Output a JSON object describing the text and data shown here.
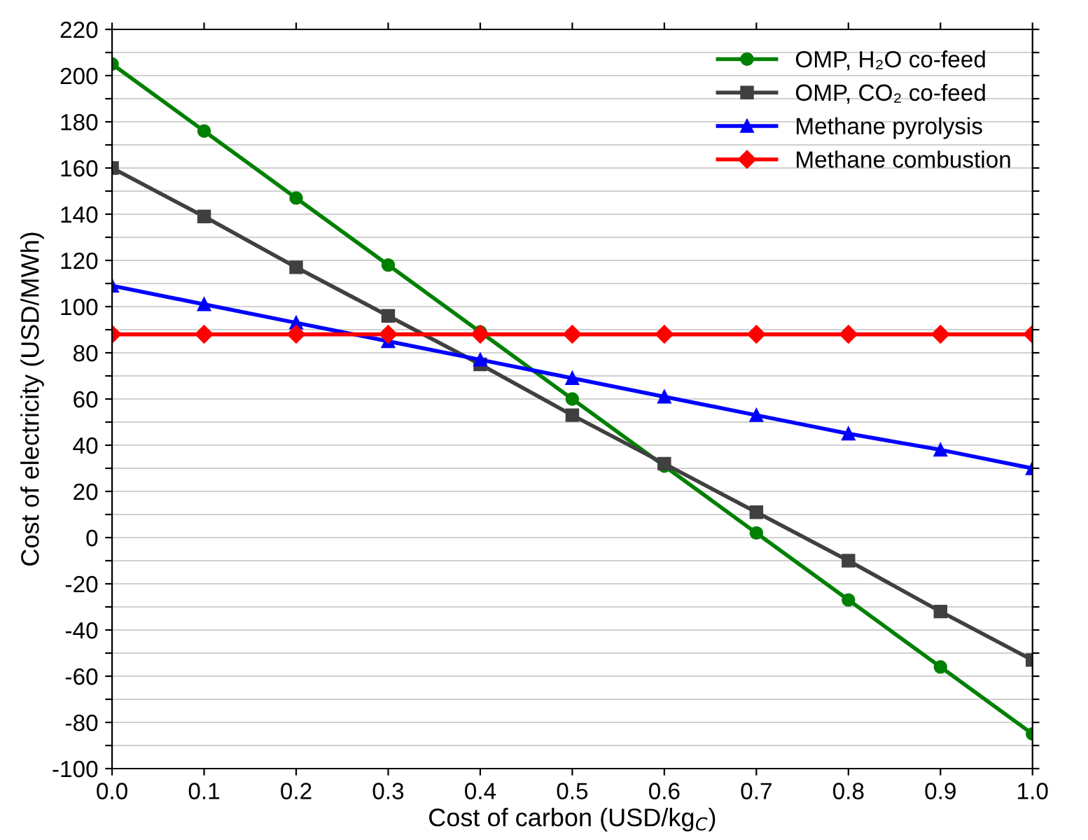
{
  "chart_data": {
    "type": "line",
    "xlabel": "Cost of carbon (USD/kg$_{C}$)",
    "ylabel": "Cost of electricity (USD/MWh)",
    "x": [
      0.0,
      0.1,
      0.2,
      0.3,
      0.4,
      0.5,
      0.6,
      0.7,
      0.8,
      0.9,
      1.0
    ],
    "series": [
      {
        "name": "OMP, H₂O co-feed",
        "color": "#008000",
        "marker": "circle",
        "values": [
          205,
          176,
          147,
          118,
          89,
          60,
          31,
          2,
          -27,
          -56,
          -85
        ]
      },
      {
        "name": "OMP, CO₂ co-feed",
        "color": "#404040",
        "marker": "square",
        "values": [
          160,
          139,
          117,
          96,
          75,
          53,
          32,
          11,
          -10,
          -32,
          -53
        ]
      },
      {
        "name": "Methane pyrolysis",
        "color": "#0000ff",
        "marker": "triangle",
        "values": [
          109,
          101,
          93,
          85,
          77,
          69,
          61,
          53,
          45,
          38,
          30
        ]
      },
      {
        "name": "Methane combustion",
        "color": "#ff0000",
        "marker": "diamond",
        "values": [
          88,
          88,
          88,
          88,
          88,
          88,
          88,
          88,
          88,
          88,
          88
        ]
      }
    ],
    "xlim": [
      0.0,
      1.0
    ],
    "xticks": [
      {
        "value": 0.0,
        "label": "0.0"
      },
      0.1,
      0.2,
      0.3,
      0.4,
      0.5,
      0.6,
      0.7,
      0.8,
      0.9,
      {
        "value": 1.0,
        "label": "1.0"
      }
    ],
    "ylim": [
      -100,
      220
    ],
    "yticks": [
      -100,
      {
        "value": -90,
        "label": null
      },
      -80,
      {
        "value": -70,
        "label": null
      },
      -60,
      {
        "value": -50,
        "label": null
      },
      -40,
      {
        "value": -30,
        "label": null
      },
      -20,
      {
        "value": -10,
        "label": null
      },
      0,
      {
        "value": 10,
        "label": null
      },
      20,
      {
        "value": 30,
        "label": null
      },
      40,
      {
        "value": 50,
        "label": null
      },
      60,
      {
        "value": 70,
        "label": null
      },
      80,
      {
        "value": 90,
        "label": null
      },
      100,
      {
        "value": 110,
        "label": null
      },
      120,
      {
        "value": 130,
        "label": null
      },
      140,
      {
        "value": 150,
        "label": null
      },
      160,
      {
        "value": 170,
        "label": null
      },
      180,
      {
        "value": 190,
        "label": null
      },
      200,
      {
        "value": 210,
        "label": null
      },
      220
    ],
    "grid": "y",
    "legend": "top right",
    "line_style": "solid"
  }
}
